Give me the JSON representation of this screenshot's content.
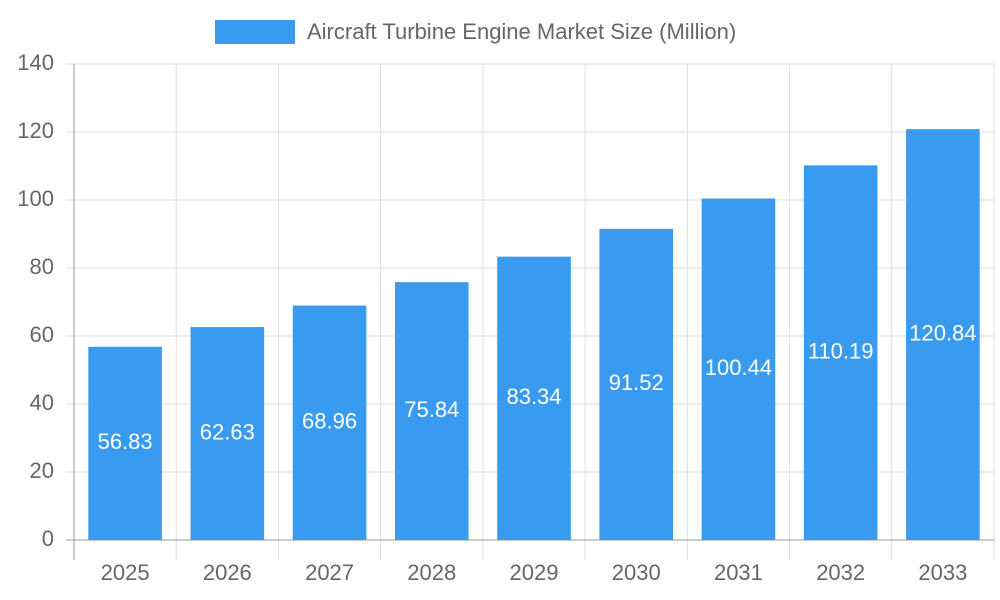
{
  "chart_data": {
    "type": "bar",
    "legend": "Aircraft Turbine Engine Market Size (Million)",
    "categories": [
      "2025",
      "2026",
      "2027",
      "2028",
      "2029",
      "2030",
      "2031",
      "2032",
      "2033"
    ],
    "values": [
      56.83,
      62.63,
      68.96,
      75.84,
      83.34,
      91.52,
      100.44,
      110.19,
      120.84
    ],
    "color": "#389bef",
    "ylim": [
      0,
      140
    ],
    "yticks": [
      0,
      20,
      40,
      60,
      80,
      100,
      120,
      140
    ],
    "grid": true
  }
}
